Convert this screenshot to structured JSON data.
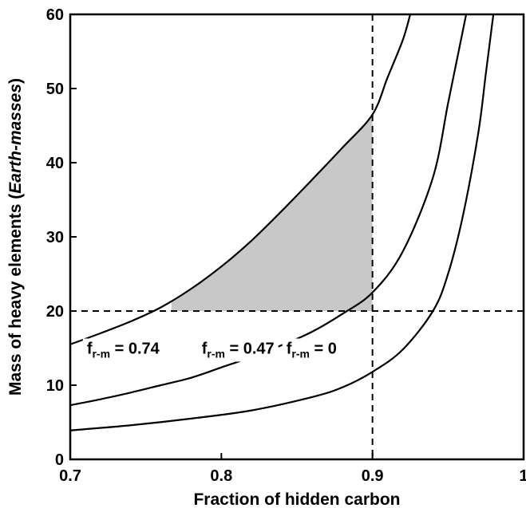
{
  "chart_data": {
    "type": "line",
    "xlabel": "Fraction of hidden carbon",
    "ylabel_prefix": "Mass of heavy elements (",
    "ylabel_italic": "Earth-masses",
    "ylabel_suffix": ")",
    "xlim": [
      0.7,
      1.0
    ],
    "ylim": [
      0,
      60
    ],
    "x_ticks": [
      0.7,
      0.8,
      0.9,
      1.0
    ],
    "x_tick_labels": [
      "0.7",
      "0.8",
      "0.9",
      "1"
    ],
    "y_ticks": [
      0,
      10,
      20,
      30,
      40,
      50,
      60
    ],
    "y_tick_labels": [
      "0",
      "10",
      "20",
      "30",
      "40",
      "50",
      "60"
    ],
    "grid": false,
    "reference_lines": [
      {
        "orientation": "vertical",
        "x": 0.9,
        "style": "dashed"
      },
      {
        "orientation": "horizontal",
        "y": 20,
        "style": "dashed"
      }
    ],
    "shaded_region": {
      "x_from": 0.767,
      "x_to": 0.9,
      "y_min": 20,
      "bounded_by_series": 0,
      "fill": "#c8c8c8"
    },
    "series": [
      {
        "label_main": "f",
        "label_sub": "r-m",
        "label_value": "= 0.74",
        "x": [
          0.7,
          0.72,
          0.74,
          0.76,
          0.78,
          0.8,
          0.82,
          0.84,
          0.86,
          0.88,
          0.9,
          0.91,
          0.92,
          0.925
        ],
        "y": [
          15.5,
          17.0,
          18.6,
          20.5,
          23.0,
          26.0,
          29.5,
          33.5,
          37.7,
          42.0,
          46.5,
          51.5,
          56.5,
          60.0
        ]
      },
      {
        "label_main": "f",
        "label_sub": "r-m",
        "label_value": "= 0.47",
        "x": [
          0.7,
          0.72,
          0.74,
          0.76,
          0.78,
          0.8,
          0.82,
          0.84,
          0.86,
          0.88,
          0.9,
          0.92,
          0.94,
          0.95,
          0.957,
          0.962
        ],
        "y": [
          7.3,
          8.1,
          9.0,
          10.0,
          11.0,
          12.4,
          13.8,
          15.4,
          17.2,
          19.6,
          22.5,
          28.0,
          38.0,
          48.0,
          55.0,
          60.0
        ]
      },
      {
        "label_main": "f",
        "label_sub": "r-m",
        "label_value": "= 0",
        "x": [
          0.7,
          0.74,
          0.78,
          0.82,
          0.86,
          0.88,
          0.9,
          0.92,
          0.94,
          0.95,
          0.96,
          0.97,
          0.975,
          0.98
        ],
        "y": [
          3.9,
          4.6,
          5.5,
          6.6,
          8.4,
          9.7,
          11.8,
          14.8,
          20.0,
          25.0,
          33.0,
          44.0,
          52.0,
          60.0
        ]
      }
    ]
  }
}
